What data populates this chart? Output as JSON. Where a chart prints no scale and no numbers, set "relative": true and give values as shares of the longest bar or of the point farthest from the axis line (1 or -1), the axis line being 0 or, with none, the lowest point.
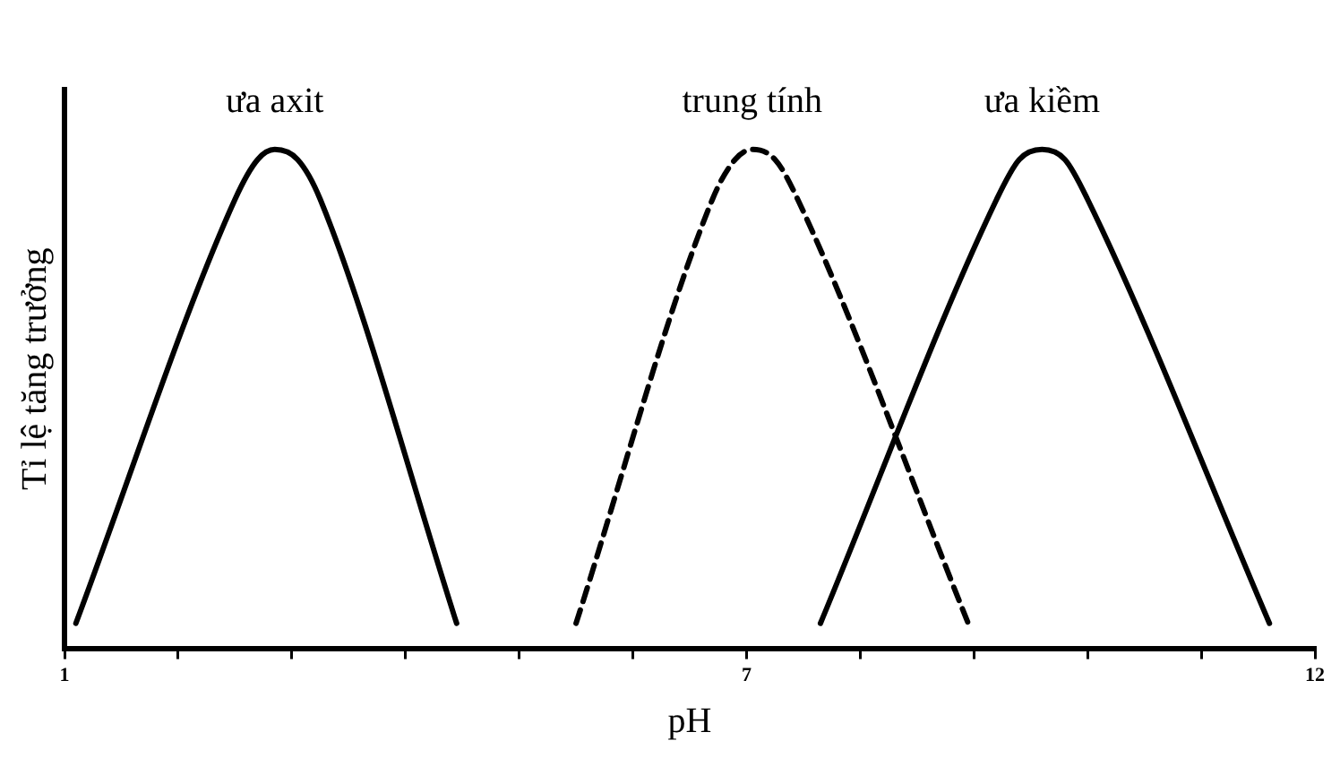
{
  "chart_data": {
    "type": "line",
    "relative": true,
    "xlabel": "pH",
    "ylabel": "Tỉ lệ tăng trưởng",
    "xlim": [
      1,
      12
    ],
    "xticks": [
      1,
      {
        "value": 2,
        "label": null
      },
      {
        "value": 3,
        "label": null
      },
      {
        "value": 4,
        "label": null
      },
      {
        "value": 5,
        "label": null
      },
      {
        "value": 6,
        "label": null
      },
      7,
      {
        "value": 8,
        "label": null
      },
      {
        "value": 9,
        "label": null
      },
      {
        "value": 10,
        "label": null
      },
      {
        "value": 11,
        "label": null
      },
      12
    ],
    "grid": false,
    "legend": false,
    "marker": "none",
    "series": [
      {
        "name": "ưa axit",
        "color": "#000000",
        "line_style": "solid",
        "x": [
          1.1,
          2.5,
          2.7,
          2.85,
          3.05,
          3.25,
          4.45
        ],
        "values": [
          0.05,
          0.9,
          0.98,
          1,
          0.98,
          0.9,
          0.05
        ]
      },
      {
        "name": "trung tính",
        "color": "#000000",
        "line_style": "dashed",
        "x": [
          5.5,
          6.7,
          6.9,
          7.05,
          7.25,
          7.45,
          8.95
        ],
        "values": [
          0.05,
          0.9,
          0.98,
          1,
          0.98,
          0.9,
          0.05
        ]
      },
      {
        "name": "ưa kiềm",
        "color": "#000000",
        "line_style": "solid",
        "x": [
          7.65,
          9.2,
          9.4,
          9.6,
          9.8,
          10.0,
          11.6
        ],
        "values": [
          0.05,
          0.9,
          0.98,
          1,
          0.98,
          0.9,
          0.05
        ]
      }
    ]
  }
}
